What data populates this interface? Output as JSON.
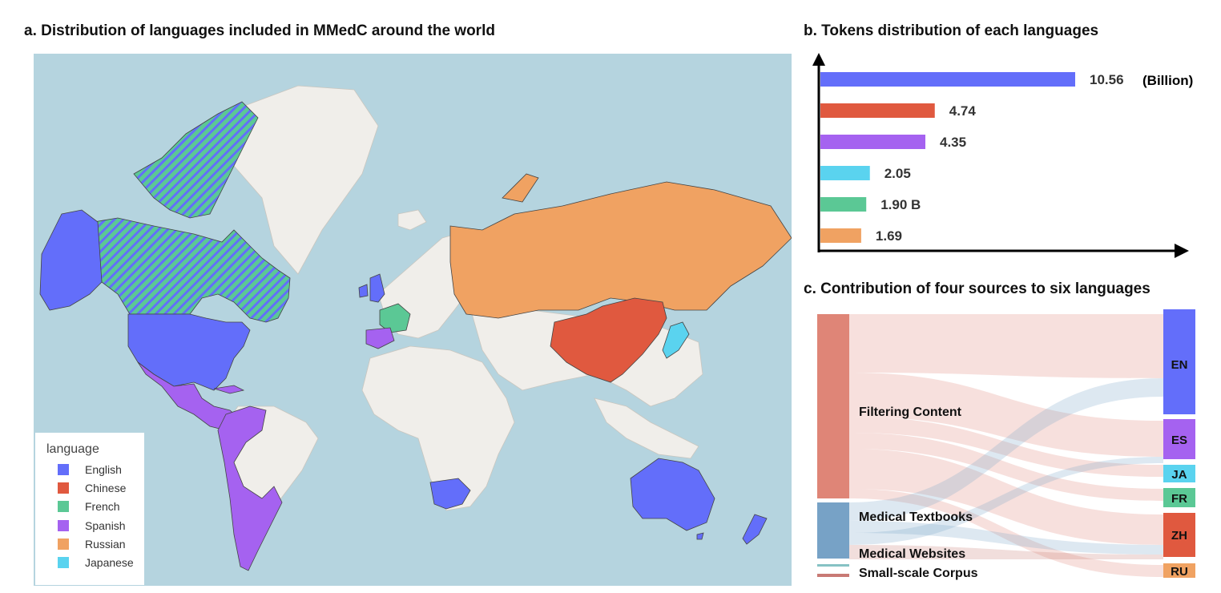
{
  "panels": {
    "a_title": "a. Distribution of languages included in  MMedC around the world",
    "b_title": "b.  Tokens distribution of each languages",
    "c_title": "c. Contribution of four sources to six languages"
  },
  "colors": {
    "English": "#636efa",
    "Chinese": "#e0593f",
    "French": "#5bc895",
    "Spanish": "#a562f0",
    "Russian": "#f0a262",
    "Japanese": "#5ad3ef",
    "ocean": "#b5d4df",
    "land": "#f0eeea",
    "land_border": "#c9c6bf",
    "filtering": "#df8577",
    "textbooks": "#77a2c6",
    "websites": "#86c2c4",
    "smallscale": "#c87a75"
  },
  "map_legend": {
    "title": "language",
    "items": [
      "English",
      "Chinese",
      "French",
      "Spanish",
      "Russian",
      "Japanese"
    ]
  },
  "chart_data": [
    {
      "type": "map",
      "title": "a. Distribution of languages included in  MMedC around the world",
      "legend_title": "language",
      "regions": {
        "English": [
          "United States",
          "United Kingdom",
          "Ireland",
          "Australia",
          "New Zealand",
          "South Africa",
          "Canada"
        ],
        "Chinese": [
          "China"
        ],
        "French": [
          "France",
          "Canada"
        ],
        "Spanish": [
          "Mexico",
          "Central America",
          "Colombia",
          "Venezuela",
          "Ecuador",
          "Peru",
          "Bolivia",
          "Chile",
          "Argentina",
          "Paraguay",
          "Uruguay",
          "Cuba",
          "Spain"
        ],
        "Russian": [
          "Russia",
          "Belarus",
          "Kazakhstan"
        ],
        "Japanese": [
          "Japan"
        ]
      }
    },
    {
      "type": "bar",
      "orientation": "horizontal",
      "title": "b.  Tokens distribution of each languages",
      "unit": "(Billion)",
      "categories": [
        "English",
        "Chinese",
        "Spanish",
        "Japanese",
        "French",
        "Russian"
      ],
      "values": [
        10.56,
        4.74,
        4.35,
        2.05,
        1.9,
        1.69
      ],
      "labels": [
        "10.56",
        "4.74",
        "4.35",
        "2.05",
        "1.90 B",
        "1.69"
      ]
    },
    {
      "type": "sankey",
      "title": "c. Contribution of four sources to six languages",
      "sources": [
        "Filtering Content",
        "Medical Textbooks",
        "Medical Websites",
        "Small-scale Corpus"
      ],
      "targets": [
        "EN",
        "ES",
        "JA",
        "FR",
        "ZH",
        "RU"
      ]
    }
  ]
}
